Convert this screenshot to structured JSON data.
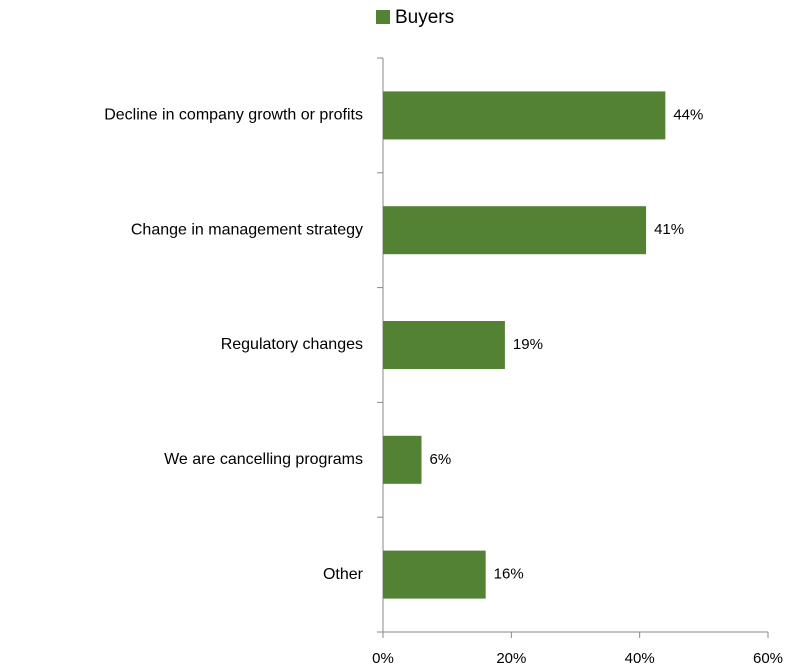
{
  "chart_data": {
    "type": "bar",
    "orientation": "horizontal",
    "categories": [
      "Decline in company growth or profits",
      "Change in management strategy",
      "Regulatory changes",
      "We are cancelling programs",
      "Other"
    ],
    "series": [
      {
        "name": "Buyers",
        "color": "#548235",
        "values": [
          44,
          41,
          19,
          6,
          16
        ],
        "value_labels": [
          "44%",
          "41%",
          "19%",
          "6%",
          "16%"
        ]
      }
    ],
    "xlim": [
      0,
      60
    ],
    "xticks": [
      {
        "value": 0,
        "label": "0%"
      },
      {
        "value": 20,
        "label": "20%"
      },
      {
        "value": 40,
        "label": "40%"
      },
      {
        "value": 60,
        "label": "60%"
      }
    ],
    "grid": false,
    "legend": "top"
  }
}
